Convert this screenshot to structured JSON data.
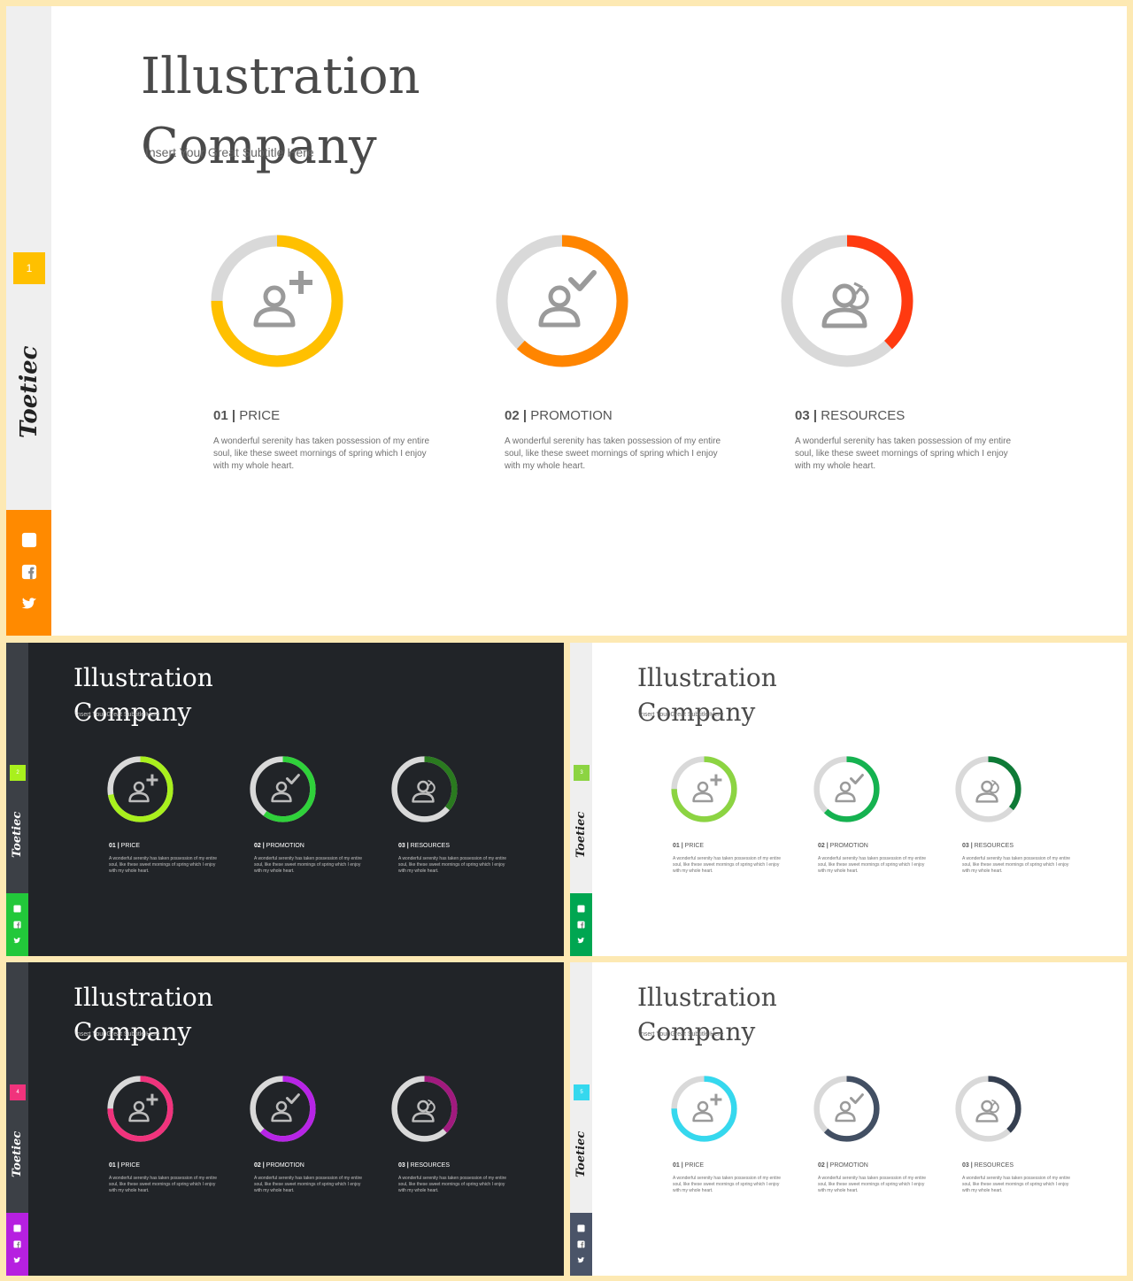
{
  "slides": [
    {
      "theme": "light",
      "page_number": "1",
      "accent_colors": [
        "#ffc000",
        "#ff8500",
        "#ff3a10"
      ],
      "sidebar_accent": "#ff8a00",
      "number_badge_color": "#ffc000",
      "progress": [
        0.75,
        0.62,
        0.38
      ]
    },
    {
      "theme": "dark",
      "page_number": "2",
      "accent_colors": [
        "#a9f01d",
        "#2fd13a",
        "#2a7a1f"
      ],
      "sidebar_accent": "#22c83a",
      "number_badge_color": "#a9f01d",
      "progress": [
        0.72,
        0.6,
        0.36
      ]
    },
    {
      "theme": "light",
      "page_number": "3",
      "accent_colors": [
        "#8cd442",
        "#15b250",
        "#0e7a36"
      ],
      "sidebar_accent": "#00a651",
      "number_badge_color": "#8cd442",
      "progress": [
        0.75,
        0.62,
        0.36
      ]
    },
    {
      "theme": "dark",
      "page_number": "4",
      "accent_colors": [
        "#f0337c",
        "#b724e6",
        "#a11a7e"
      ],
      "sidebar_accent": "#b620e0",
      "number_badge_color": "#f0337c",
      "progress": [
        0.75,
        0.62,
        0.38
      ]
    },
    {
      "theme": "light",
      "page_number": "5",
      "accent_colors": [
        "#35d8ee",
        "#424f63",
        "#353f50"
      ],
      "sidebar_accent": "#4a5468",
      "number_badge_color": "#35d8ee",
      "progress": [
        0.75,
        0.62,
        0.38
      ]
    }
  ],
  "common": {
    "title_line1": "Illustration",
    "title_line2": "Company",
    "subtitle": "Insert Your Great Subtitle Here",
    "brand": "Toetiec",
    "social_icons": [
      "linkedin-icon",
      "facebook-icon",
      "twitter-icon"
    ],
    "items": [
      {
        "number": "01",
        "label": "PRICE",
        "icon": "add-user-icon",
        "description": "A wonderful serenity has taken possession of my entire soul, like these sweet mornings of spring which I enjoy with my whole heart."
      },
      {
        "number": "02",
        "label": "PROMOTION",
        "icon": "user-check-icon",
        "description": "A wonderful serenity has taken possession of my entire soul, like these sweet mornings of spring which I enjoy with my whole heart."
      },
      {
        "number": "03",
        "label": "RESOURCES",
        "icon": "user-sync-icon",
        "description": "A wonderful serenity has taken possession of my entire soul, like these sweet mornings of spring which I enjoy with my whole heart."
      }
    ]
  }
}
